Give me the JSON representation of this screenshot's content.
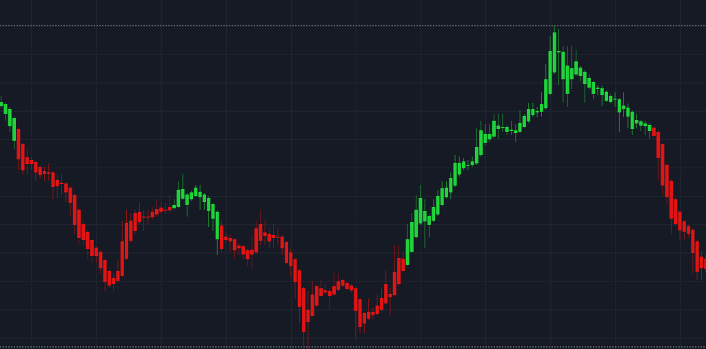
{
  "chart_data": {
    "type": "candlestick",
    "title": "",
    "xlabel": "",
    "ylabel": "",
    "ylim": [
      0,
      466
    ],
    "grid": true,
    "reference_lines": [
      {
        "value": 466,
        "style": "dotted"
      },
      {
        "value": 0,
        "style": "dotted"
      }
    ],
    "colors": {
      "background": "#161a25",
      "grid": "#232836",
      "reference": "#9aa0aa",
      "green_body": "#1fd23a",
      "green_wick": "#1c8f2e",
      "red_body": "#e01414",
      "red_wick": "#8f1616"
    },
    "candle_fields": [
      "open",
      "high",
      "low",
      "close",
      "color"
    ],
    "candles": [
      [
        349,
        364,
        346,
        355,
        "g"
      ],
      [
        338,
        354,
        328,
        352,
        "g"
      ],
      [
        320,
        348,
        312,
        345,
        "g"
      ],
      [
        299,
        334,
        287,
        332,
        "g"
      ],
      [
        316,
        318,
        256,
        272,
        "r"
      ],
      [
        294,
        296,
        250,
        256,
        "r"
      ],
      [
        275,
        287,
        250,
        265,
        "r"
      ],
      [
        271,
        276,
        256,
        265,
        "r"
      ],
      [
        268,
        270,
        241,
        253,
        "r"
      ],
      [
        261,
        263,
        245,
        249,
        "r"
      ],
      [
        255,
        261,
        241,
        251,
        "r"
      ],
      [
        253,
        266,
        241,
        251,
        "r"
      ],
      [
        253,
        255,
        215,
        232,
        "r"
      ],
      [
        242,
        250,
        215,
        233,
        "r"
      ],
      [
        238,
        250,
        220,
        236,
        "r"
      ],
      [
        237,
        239,
        210,
        224,
        "r"
      ],
      [
        231,
        233,
        189,
        209,
        "r"
      ],
      [
        220,
        222,
        163,
        177,
        "r"
      ],
      [
        199,
        201,
        148,
        158,
        "r"
      ],
      [
        178,
        183,
        148,
        155,
        "r"
      ],
      [
        167,
        169,
        127,
        142,
        "r"
      ],
      [
        155,
        157,
        122,
        132,
        "r"
      ],
      [
        144,
        146,
        122,
        132,
        "r"
      ],
      [
        138,
        140,
        106,
        114,
        "r"
      ],
      [
        126,
        128,
        81,
        94,
        "r"
      ],
      [
        110,
        112,
        86,
        89,
        "r"
      ],
      [
        100,
        107,
        81,
        91,
        "r"
      ],
      [
        110,
        127,
        93,
        96,
        "r"
      ],
      [
        153,
        183,
        101,
        103,
        "r"
      ],
      [
        180,
        199,
        126,
        128,
        "r"
      ],
      [
        183,
        194,
        151,
        154,
        "r"
      ],
      [
        194,
        199,
        165,
        168,
        "r"
      ],
      [
        196,
        209,
        178,
        181,
        "r"
      ],
      [
        189,
        199,
        168,
        188,
        "r"
      ],
      [
        189,
        199,
        178,
        188,
        "r"
      ],
      [
        196,
        203,
        185,
        188,
        "r"
      ],
      [
        200,
        214,
        189,
        192,
        "r"
      ],
      [
        202,
        209,
        193,
        196,
        "r"
      ],
      [
        199,
        209,
        193,
        198,
        "r"
      ],
      [
        203,
        220,
        195,
        198,
        "r"
      ],
      [
        201,
        215,
        199,
        206,
        "g"
      ],
      [
        203,
        240,
        201,
        228,
        "g"
      ],
      [
        215,
        251,
        213,
        229,
        "g"
      ],
      [
        206,
        223,
        189,
        221,
        "g"
      ],
      [
        214,
        226,
        212,
        224,
        "g"
      ],
      [
        219,
        235,
        217,
        231,
        "g"
      ],
      [
        217,
        235,
        199,
        225,
        "g"
      ],
      [
        210,
        223,
        199,
        221,
        "g"
      ],
      [
        197,
        218,
        174,
        216,
        "g"
      ],
      [
        186,
        209,
        168,
        207,
        "g"
      ],
      [
        156,
        198,
        133,
        196,
        "g"
      ],
      [
        176,
        183,
        138,
        142,
        "r"
      ],
      [
        160,
        165,
        151,
        155,
        "r"
      ],
      [
        158,
        163,
        138,
        153,
        "r"
      ],
      [
        156,
        158,
        128,
        140,
        "r"
      ],
      [
        147,
        151,
        133,
        143,
        "r"
      ],
      [
        146,
        148,
        127,
        134,
        "r"
      ],
      [
        140,
        142,
        117,
        127,
        "r"
      ],
      [
        141,
        163,
        113,
        134,
        "r"
      ],
      [
        172,
        183,
        135,
        137,
        "r"
      ],
      [
        178,
        199,
        148,
        154,
        "r"
      ],
      [
        166,
        183,
        148,
        161,
        "r"
      ],
      [
        164,
        173,
        143,
        153,
        "r"
      ],
      [
        162,
        178,
        143,
        158,
        "r"
      ],
      [
        160,
        173,
        148,
        159,
        "r"
      ],
      [
        160,
        162,
        133,
        143,
        "r"
      ],
      [
        152,
        154,
        120,
        122,
        "r"
      ],
      [
        137,
        143,
        101,
        117,
        "r"
      ],
      [
        127,
        129,
        70,
        94,
        "r"
      ],
      [
        111,
        113,
        35,
        58,
        "r"
      ],
      [
        85,
        87,
        -3,
        22,
        "r"
      ],
      [
        54,
        81,
        -3,
        36,
        "r"
      ],
      [
        76,
        96,
        43,
        45,
        "r"
      ],
      [
        88,
        90,
        58,
        60,
        "r"
      ],
      [
        85,
        98,
        72,
        74,
        "r"
      ],
      [
        82,
        91,
        77,
        79,
        "r"
      ],
      [
        81,
        85,
        55,
        74,
        "r"
      ],
      [
        88,
        107,
        74,
        76,
        "r"
      ],
      [
        95,
        107,
        81,
        83,
        "r"
      ],
      [
        97,
        99,
        87,
        89,
        "r"
      ],
      [
        93,
        95,
        82,
        84,
        "r"
      ],
      [
        89,
        91,
        78,
        82,
        "r"
      ],
      [
        85,
        87,
        14,
        52,
        "r"
      ],
      [
        69,
        71,
        20,
        29,
        "r"
      ],
      [
        49,
        51,
        20,
        34,
        "r"
      ],
      [
        51,
        70,
        39,
        41,
        "r"
      ],
      [
        51,
        57,
        40,
        46,
        "r"
      ],
      [
        60,
        76,
        46,
        48,
        "r"
      ],
      [
        71,
        86,
        52,
        54,
        "r"
      ],
      [
        91,
        112,
        61,
        63,
        "r"
      ],
      [
        77,
        86,
        46,
        72,
        "r"
      ],
      [
        109,
        148,
        73,
        75,
        "r"
      ],
      [
        129,
        148,
        89,
        91,
        "r"
      ],
      [
        128,
        138,
        108,
        110,
        "r"
      ],
      [
        119,
        178,
        117,
        156,
        "g"
      ],
      [
        138,
        194,
        136,
        181,
        "g"
      ],
      [
        159,
        220,
        157,
        199,
        "g"
      ],
      [
        179,
        235,
        177,
        216,
        "g"
      ],
      [
        182,
        214,
        143,
        197,
        "g"
      ],
      [
        177,
        192,
        159,
        190,
        "g"
      ],
      [
        183,
        214,
        181,
        203,
        "g"
      ],
      [
        192,
        227,
        190,
        219,
        "g"
      ],
      [
        206,
        240,
        204,
        230,
        "g"
      ],
      [
        217,
        240,
        215,
        231,
        "g"
      ],
      [
        224,
        253,
        214,
        245,
        "g"
      ],
      [
        234,
        278,
        232,
        267,
        "g"
      ],
      [
        250,
        276,
        247,
        267,
        "g"
      ],
      [
        259,
        274,
        256,
        269,
        "g"
      ],
      [
        263,
        271,
        256,
        264,
        "g"
      ],
      [
        264,
        276,
        261,
        269,
        "g"
      ],
      [
        266,
        317,
        264,
        290,
        "g"
      ],
      [
        278,
        328,
        276,
        314,
        "g"
      ],
      [
        296,
        323,
        293,
        309,
        "g"
      ],
      [
        301,
        323,
        297,
        309,
        "g"
      ],
      [
        305,
        338,
        303,
        328,
        "g"
      ],
      [
        316,
        338,
        302,
        321,
        "g"
      ],
      [
        318,
        338,
        312,
        319,
        "g"
      ],
      [
        312,
        321,
        307,
        319,
        "g"
      ],
      [
        313,
        328,
        307,
        315,
        "g"
      ],
      [
        310,
        323,
        297,
        314,
        "g"
      ],
      [
        312,
        343,
        310,
        325,
        "g"
      ],
      [
        319,
        338,
        317,
        335,
        "g"
      ],
      [
        327,
        354,
        325,
        345,
        "g"
      ],
      [
        336,
        354,
        333,
        345,
        "g"
      ],
      [
        340,
        348,
        333,
        342,
        "g"
      ],
      [
        341,
        369,
        334,
        352,
        "g"
      ],
      [
        346,
        410,
        344,
        388,
        "g"
      ],
      [
        367,
        451,
        365,
        429,
        "g"
      ],
      [
        398,
        466,
        396,
        456,
        "g"
      ],
      [
        427,
        461,
        380,
        429,
        "g"
      ],
      [
        388,
        436,
        354,
        428,
        "g"
      ],
      [
        367,
        436,
        348,
        408,
        "g"
      ],
      [
        388,
        436,
        374,
        404,
        "g"
      ],
      [
        395,
        431,
        393,
        414,
        "g"
      ],
      [
        393,
        407,
        385,
        405,
        "g"
      ],
      [
        381,
        401,
        354,
        399,
        "g"
      ],
      [
        376,
        395,
        373,
        390,
        "g"
      ],
      [
        367,
        386,
        359,
        384,
        "g"
      ],
      [
        374,
        380,
        365,
        376,
        "g"
      ],
      [
        365,
        379,
        349,
        375,
        "g"
      ],
      [
        357,
        372,
        355,
        370,
        "g"
      ],
      [
        355,
        366,
        353,
        364,
        "g"
      ],
      [
        359,
        369,
        348,
        360,
        "g"
      ],
      [
        340,
        361,
        312,
        359,
        "g"
      ],
      [
        345,
        369,
        333,
        350,
        "g"
      ],
      [
        334,
        353,
        317,
        347,
        "g"
      ],
      [
        316,
        343,
        307,
        341,
        "g"
      ],
      [
        324,
        338,
        317,
        329,
        "g"
      ],
      [
        321,
        329,
        313,
        327,
        "g"
      ],
      [
        320,
        328,
        307,
        324,
        "g"
      ],
      [
        313,
        324,
        302,
        322,
        "g"
      ],
      [
        318,
        320,
        302,
        306,
        "r"
      ],
      [
        312,
        314,
        241,
        274,
        "r"
      ],
      [
        294,
        296,
        220,
        234,
        "r"
      ],
      [
        264,
        266,
        205,
        217,
        "r"
      ],
      [
        241,
        243,
        163,
        186,
        "r"
      ],
      [
        214,
        216,
        176,
        178,
        "r"
      ],
      [
        196,
        198,
        154,
        169,
        "r"
      ],
      [
        182,
        184,
        155,
        167,
        "r"
      ],
      [
        175,
        177,
        159,
        164,
        "r"
      ],
      [
        170,
        172,
        107,
        136,
        "r"
      ],
      [
        153,
        155,
        97,
        109,
        "r"
      ],
      [
        131,
        139,
        97,
        114,
        "r"
      ],
      [
        128,
        133,
        108,
        113,
        "r"
      ]
    ]
  }
}
